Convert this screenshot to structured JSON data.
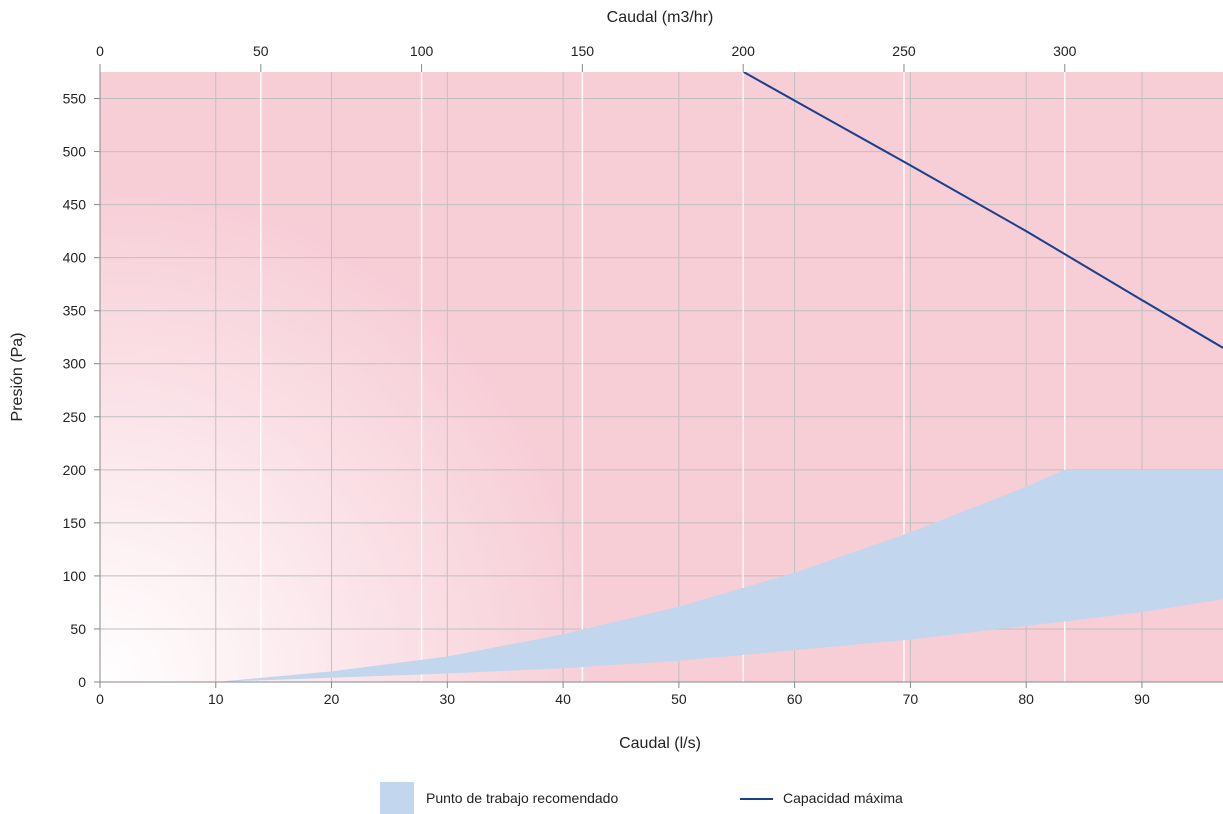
{
  "chart_data": {
    "type": "area",
    "xlabel": "Caudal (l/s)",
    "ylabel": "Presión (Pa)",
    "x2label": "Caudal (m3/hr)",
    "xlim": [
      0,
      97
    ],
    "ylim": [
      0,
      575
    ],
    "x2lim": [
      0,
      349.2
    ],
    "xticks": [
      0,
      10,
      20,
      30,
      40,
      50,
      60,
      70,
      80,
      90
    ],
    "yticks": [
      0,
      50,
      100,
      150,
      200,
      250,
      300,
      350,
      400,
      450,
      500,
      550
    ],
    "x2ticks": [
      0,
      50,
      100,
      150,
      200,
      250,
      300
    ],
    "grid": true,
    "legend_position": "bottom-center",
    "series": [
      {
        "name": "Punto de trabajo recomendado",
        "kind": "band",
        "color": "#c2d6ee",
        "x": [
          10,
          20,
          30,
          40,
          50,
          60,
          70,
          80,
          83.3,
          90,
          97
        ],
        "upper": [
          0,
          10,
          24,
          45,
          71,
          103,
          141,
          184,
          200,
          200,
          200
        ],
        "lower": [
          0,
          4,
          8,
          13,
          20,
          30,
          40,
          53,
          57,
          66,
          78
        ]
      },
      {
        "name": "Capacidad máxima",
        "kind": "line",
        "color": "#1a3f8c",
        "x": [
          55.6,
          60,
          70,
          80,
          90,
          97
        ],
        "y": [
          575,
          548,
          487,
          425,
          360,
          315
        ]
      }
    ],
    "colors": {
      "background_strong": "#f7cdd6",
      "background_light": "#ffffff",
      "grid": "#c0c0c0",
      "axis": "#888888"
    }
  }
}
